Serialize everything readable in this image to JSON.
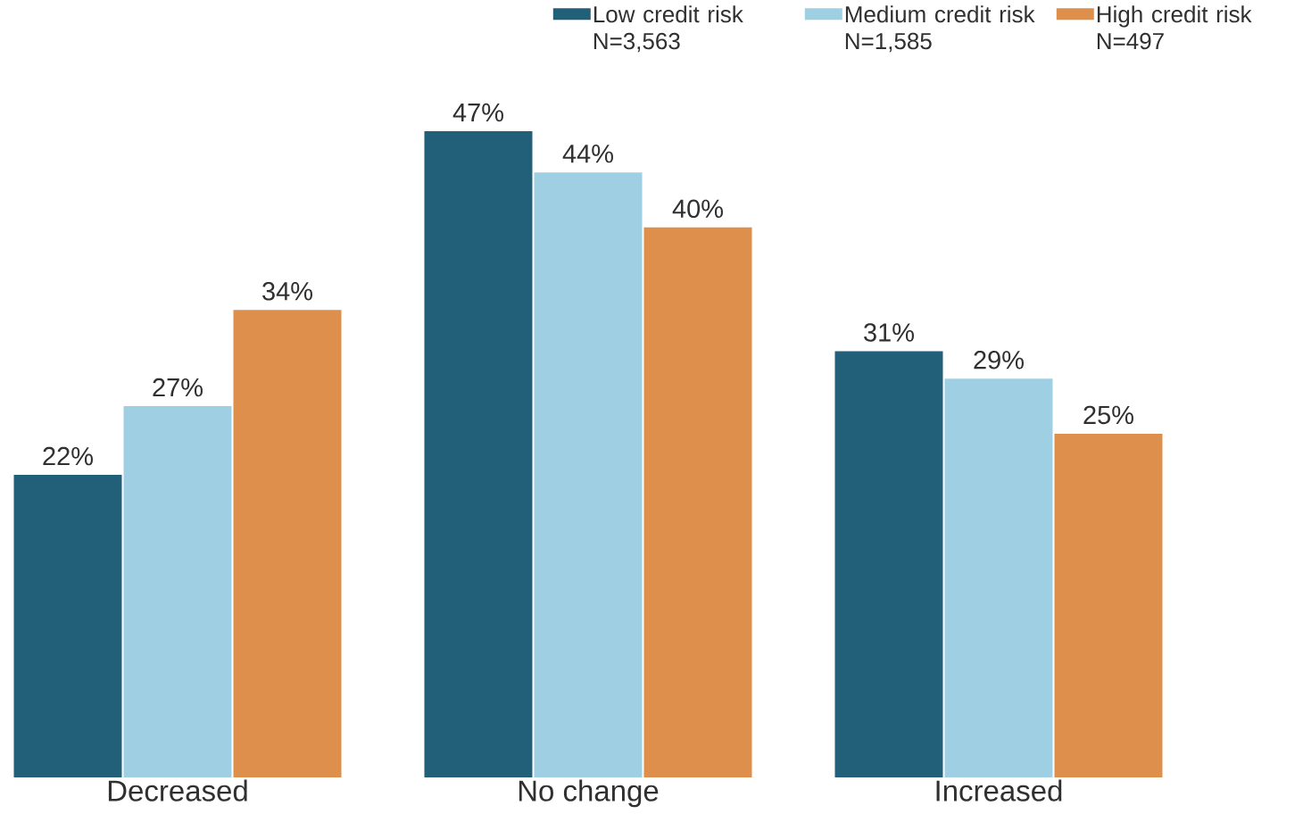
{
  "chart_data": {
    "type": "bar",
    "categories": [
      "Decreased",
      "No change",
      "Increased"
    ],
    "series": [
      {
        "name": "Low credit risk N=3,563",
        "color": "#22607a",
        "values": [
          22,
          47,
          31
        ],
        "value_labels": [
          "22%",
          "47%",
          "31%"
        ]
      },
      {
        "name": "Medium credit risk N=1,585",
        "color": "#9ecfe2",
        "values": [
          27,
          44,
          29
        ],
        "value_labels": [
          "27%",
          "44%",
          "29%"
        ]
      },
      {
        "name": "High credit risk N=497",
        "color": "#dd8f4b",
        "values": [
          34,
          40,
          25
        ],
        "value_labels": [
          "34%",
          "40%",
          "25%"
        ]
      }
    ],
    "legend": "top right"
  }
}
